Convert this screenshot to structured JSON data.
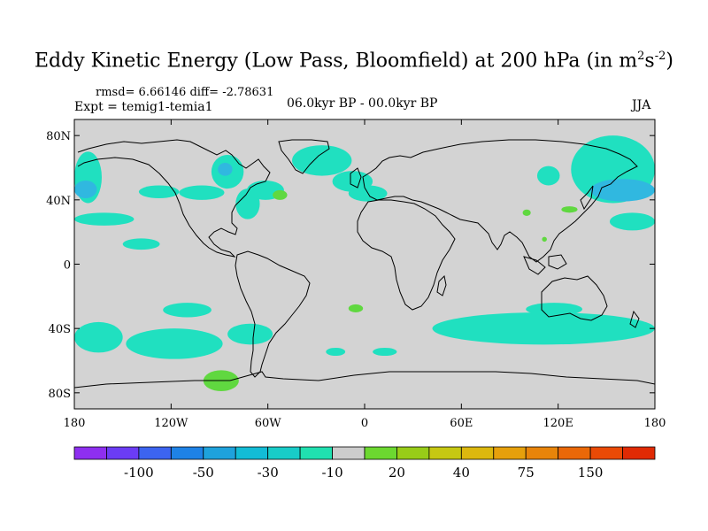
{
  "title": {
    "main": "Eddy Kinetic Energy (Low Pass, Bloomfield) at 200 hPa (in m",
    "sup1": "2",
    "mid": "s",
    "sup2": "-2",
    "end": ")"
  },
  "stats": "rmsd= 6.66146  diff= -2.78631",
  "expt": "Expt = temig1-temia1",
  "period": "06.0kyr BP - 00.0kyr BP",
  "season": "JJA",
  "map": {
    "lat_labels": [
      {
        "lat": 80,
        "label": "80N"
      },
      {
        "lat": 40,
        "label": "40N"
      },
      {
        "lat": 0,
        "label": "0"
      },
      {
        "lat": -40,
        "label": "40S"
      },
      {
        "lat": -80,
        "label": "80S"
      }
    ],
    "lon_labels": [
      {
        "lon": -180,
        "label": "180"
      },
      {
        "lon": -120,
        "label": "120W"
      },
      {
        "lon": -60,
        "label": "60W"
      },
      {
        "lon": 0,
        "label": "0"
      },
      {
        "lon": 60,
        "label": "60E"
      },
      {
        "lon": 120,
        "label": "120E"
      },
      {
        "lon": 180,
        "label": "180"
      }
    ],
    "background_color": "#d3d3d3",
    "anomaly_regions": [
      {
        "color": "#20e0c0",
        "lon": [
          -180,
          -163
        ],
        "lat": [
          38,
          70
        ]
      },
      {
        "color": "#30b8e0",
        "lon": [
          -180,
          -166
        ],
        "lat": [
          41,
          52
        ]
      },
      {
        "color": "#20e0c0",
        "lon": [
          -180,
          -143
        ],
        "lat": [
          24,
          32
        ]
      },
      {
        "color": "#20e0c0",
        "lon": [
          -150,
          -127
        ],
        "lat": [
          9,
          16
        ]
      },
      {
        "color": "#20e0c0",
        "lon": [
          -140,
          -115
        ],
        "lat": [
          41,
          49
        ]
      },
      {
        "color": "#20e0c0",
        "lon": [
          -115,
          -87
        ],
        "lat": [
          40,
          49
        ]
      },
      {
        "color": "#20e0c0",
        "lon": [
          -95,
          -75
        ],
        "lat": [
          47,
          68
        ]
      },
      {
        "color": "#30b8e0",
        "lon": [
          -91,
          -82
        ],
        "lat": [
          55,
          63
        ]
      },
      {
        "color": "#20e0c0",
        "lon": [
          -80,
          -65
        ],
        "lat": [
          28,
          47
        ]
      },
      {
        "color": "#20e0c0",
        "lon": [
          -73,
          -50
        ],
        "lat": [
          40,
          52
        ]
      },
      {
        "color": "#20e0c0",
        "lon": [
          -125,
          -95
        ],
        "lat": [
          -33,
          -24
        ]
      },
      {
        "color": "#20e0c0",
        "lon": [
          -180,
          -150
        ],
        "lat": [
          -55,
          -36
        ]
      },
      {
        "color": "#20e0c0",
        "lon": [
          -148,
          -88
        ],
        "lat": [
          -59,
          -40
        ]
      },
      {
        "color": "#20e0c0",
        "lon": [
          -85,
          -57
        ],
        "lat": [
          -50,
          -37
        ]
      },
      {
        "color": "#20e0c0",
        "lon": [
          -45,
          -8
        ],
        "lat": [
          55,
          74
        ]
      },
      {
        "color": "#20e0c0",
        "lon": [
          -20,
          5
        ],
        "lat": [
          45,
          58
        ]
      },
      {
        "color": "#20e0c0",
        "lon": [
          -10,
          14
        ],
        "lat": [
          39,
          49
        ]
      },
      {
        "color": "#20e0c0",
        "lon": [
          -24,
          -12
        ],
        "lat": [
          -57,
          -52
        ]
      },
      {
        "color": "#20e0c0",
        "lon": [
          5,
          20
        ],
        "lat": [
          -57,
          -52
        ]
      },
      {
        "color": "#20e0c0",
        "lon": [
          42,
          180
        ],
        "lat": [
          -50,
          -30
        ]
      },
      {
        "color": "#20e0c0",
        "lon": [
          100,
          135
        ],
        "lat": [
          -32,
          -24
        ]
      },
      {
        "color": "#20e0c0",
        "lon": [
          128,
          180
        ],
        "lat": [
          38,
          80
        ]
      },
      {
        "color": "#30b8e0",
        "lon": [
          140,
          180
        ],
        "lat": [
          39,
          53
        ]
      },
      {
        "color": "#20e0c0",
        "lon": [
          107,
          121
        ],
        "lat": [
          49,
          61
        ]
      },
      {
        "color": "#20e0c0",
        "lon": [
          152,
          180
        ],
        "lat": [
          21,
          32
        ]
      },
      {
        "color": "#60d840",
        "lon": [
          -57,
          -48
        ],
        "lat": [
          40,
          46
        ]
      },
      {
        "color": "#60d840",
        "lon": [
          -10,
          -1
        ],
        "lat": [
          -30,
          -25
        ]
      },
      {
        "color": "#60d840",
        "lon": [
          -100,
          -78
        ],
        "lat": [
          -79,
          -66
        ]
      },
      {
        "color": "#60d840",
        "lon": [
          122,
          132
        ],
        "lat": [
          32,
          36
        ]
      },
      {
        "color": "#60d840",
        "lon": [
          98,
          103
        ],
        "lat": [
          30,
          34
        ]
      },
      {
        "color": "#60d840",
        "lon": [
          110,
          113
        ],
        "lat": [
          14,
          17
        ]
      }
    ]
  },
  "colorbar": {
    "colors": [
      "#8e2ff0",
      "#6b3cf5",
      "#3c64f0",
      "#1e82e6",
      "#1ea2dc",
      "#12bcd6",
      "#18ccc8",
      "#20e0b0",
      "#cccccc",
      "#6cd830",
      "#98cc18",
      "#c6c812",
      "#dcb80e",
      "#e6a00c",
      "#e8840a",
      "#ea6808",
      "#ea4a06",
      "#e02a04"
    ],
    "labels": [
      {
        "boundary": 2,
        "text": "-100"
      },
      {
        "boundary": 4,
        "text": "-50"
      },
      {
        "boundary": 6,
        "text": "-30"
      },
      {
        "boundary": 8,
        "text": "-10"
      },
      {
        "boundary": 10,
        "text": "20"
      },
      {
        "boundary": 12,
        "text": "40"
      },
      {
        "boundary": 14,
        "text": "75"
      },
      {
        "boundary": 16,
        "text": "150"
      }
    ]
  }
}
